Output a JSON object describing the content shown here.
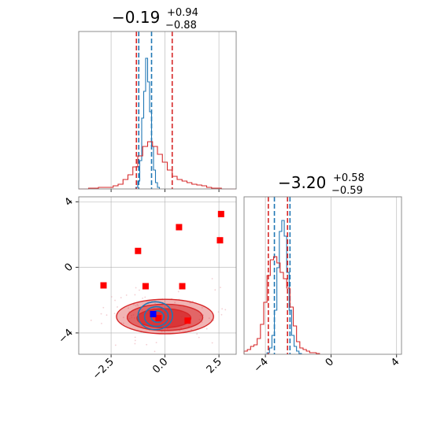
{
  "colors": {
    "blue": "#1f77b4",
    "red": "#d62728",
    "marker_red": "#ff0000",
    "marker_blue": "#0000ff",
    "grid": "#b0b0b0",
    "axes": "#808080"
  },
  "chart_data": [
    {
      "type": "histogram",
      "panel": "top-left",
      "parameter_index": 0,
      "title": {
        "value": "−0.19",
        "plus": "+0.94",
        "minus": "−0.88"
      },
      "xlim": [
        -4.0,
        4.0
      ],
      "ylim": [
        0,
        1.0
      ],
      "grid": true,
      "series": [
        {
          "name": "",
          "color": "#1f77b4",
          "bins": [
            -1.1,
            -1.0,
            -0.9,
            -0.8,
            -0.7,
            -0.6,
            -0.5,
            -0.4,
            -0.3,
            -0.2,
            -0.1,
            0.0,
            0.1
          ],
          "counts": [
            0.01,
            0.05,
            0.18,
            0.45,
            0.62,
            0.83,
            0.68,
            0.49,
            0.27,
            0.12,
            0.04,
            0.01
          ],
          "quantiles": [
            -0.95,
            -0.3
          ]
        },
        {
          "name": "",
          "color": "#d62728",
          "bins": [
            -4.0,
            -3.75,
            -3.5,
            -3.25,
            -3.0,
            -2.75,
            -2.5,
            -2.25,
            -2.0,
            -1.75,
            -1.5,
            -1.25,
            -1.0,
            -0.75,
            -0.5,
            -0.25,
            0.0,
            0.25,
            0.5,
            0.75,
            1.0,
            1.25,
            1.5,
            1.75,
            2.0,
            2.25,
            2.5,
            2.75,
            3.0,
            3.25,
            3.5,
            3.75,
            4.0
          ],
          "counts": [
            0.0,
            0.0,
            0.005,
            0.005,
            0.01,
            0.01,
            0.01,
            0.02,
            0.03,
            0.06,
            0.09,
            0.14,
            0.21,
            0.27,
            0.3,
            0.27,
            0.22,
            0.17,
            0.12,
            0.08,
            0.06,
            0.05,
            0.04,
            0.03,
            0.025,
            0.02,
            0.01,
            0.005,
            0.005,
            0.0,
            0.0,
            0.0
          ],
          "quantiles": [
            -1.07,
            0.75
          ]
        }
      ],
      "xticks": [],
      "yticks": []
    },
    {
      "type": "contour-scatter",
      "panel": "bottom-left",
      "xlim": [
        -4.0,
        3.3
      ],
      "ylim": [
        -5.3,
        4.3
      ],
      "grid": true,
      "xticks": [
        -2.5,
        0.0,
        2.5
      ],
      "xticklabels": [
        "−2.5",
        "0.0",
        "2.5"
      ],
      "yticks": [
        -4,
        0,
        4
      ],
      "yticklabels": [
        "−4",
        "0",
        "4"
      ],
      "red_squares": [
        [
          -2.85,
          -1.1
        ],
        [
          -1.25,
          1.0
        ],
        [
          -0.9,
          -1.15
        ],
        [
          0.65,
          2.45
        ],
        [
          0.8,
          -1.15
        ],
        [
          2.6,
          3.25
        ],
        [
          2.55,
          1.65
        ],
        [
          -0.3,
          -3.1
        ],
        [
          1.05,
          -3.25
        ]
      ],
      "blue_square": [
        -0.55,
        -2.85
      ],
      "red_contours": [
        {
          "cx": 0.0,
          "cy": -3.0,
          "rx": 2.25,
          "ry": 1.05,
          "fill_opacity": 0.35
        },
        {
          "cx": 0.0,
          "cy": -3.05,
          "rx": 1.75,
          "ry": 0.8,
          "fill_opacity": 0.55
        },
        {
          "cx": -0.05,
          "cy": -3.1,
          "rx": 1.25,
          "ry": 0.58,
          "fill_opacity": 0.75
        }
      ],
      "blue_contours": [
        {
          "cx": -0.45,
          "cy": -2.95,
          "rx": 0.8,
          "ry": 0.85
        },
        {
          "cx": -0.4,
          "cy": -3.0,
          "rx": 0.55,
          "ry": 0.6
        },
        {
          "cx": -0.35,
          "cy": -3.0,
          "rx": 0.3,
          "ry": 0.35
        }
      ]
    },
    {
      "type": "histogram",
      "panel": "bottom-right",
      "parameter_index": 1,
      "title": {
        "value": "−3.20",
        "plus": "+0.58",
        "minus": "−0.59"
      },
      "xlim": [
        -5.3,
        4.3
      ],
      "ylim": [
        0,
        1.0
      ],
      "grid": true,
      "xticks": [
        -4,
        0,
        4
      ],
      "xticklabels": [
        "−4",
        "0",
        "4"
      ],
      "yticks": [],
      "series": [
        {
          "name": "",
          "color": "#1f77b4",
          "bins": [
            -3.9,
            -3.75,
            -3.6,
            -3.45,
            -3.3,
            -3.15,
            -3.0,
            -2.85,
            -2.7,
            -2.55,
            -2.4,
            -2.25,
            -2.1,
            -1.95,
            -1.8
          ],
          "counts": [
            0.01,
            0.04,
            0.12,
            0.28,
            0.55,
            0.78,
            0.85,
            0.75,
            0.52,
            0.28,
            0.12,
            0.05,
            0.02,
            0.005
          ],
          "quantiles": [
            -3.45,
            -2.5
          ]
        },
        {
          "name": "",
          "color": "#d62728",
          "bins": [
            -5.3,
            -5.1,
            -4.9,
            -4.7,
            -4.5,
            -4.3,
            -4.1,
            -3.9,
            -3.7,
            -3.5,
            -3.3,
            -3.1,
            -2.9,
            -2.7,
            -2.5,
            -2.3,
            -2.1,
            -1.9,
            -1.7,
            -1.5,
            -1.3,
            -1.1,
            -0.9,
            -0.7
          ],
          "counts": [
            0.02,
            0.03,
            0.05,
            0.06,
            0.1,
            0.19,
            0.33,
            0.5,
            0.6,
            0.62,
            0.58,
            0.52,
            0.48,
            0.42,
            0.3,
            0.18,
            0.08,
            0.04,
            0.03,
            0.02,
            0.01,
            0.01,
            0.005
          ],
          "quantiles": [
            -3.82,
            -2.65
          ]
        }
      ]
    }
  ]
}
